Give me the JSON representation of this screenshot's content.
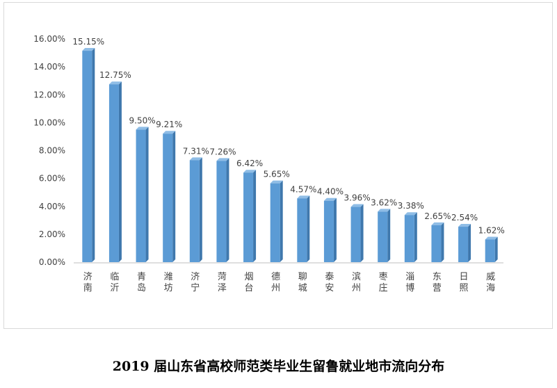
{
  "caption": "2019 届山东省高校师范类毕业生留鲁就业地市流向分布",
  "colors": {
    "bar_front": "#5b9bd5",
    "bar_side": "#3f78ad",
    "bar_top": "#8fbde6",
    "axis": "#bfbfbf"
  },
  "chart_data": {
    "type": "bar",
    "title": "2019 届山东省高校师范类毕业生留鲁就业地市流向分布",
    "xlabel": "",
    "ylabel": "",
    "ylim": [
      0,
      16
    ],
    "yticks": [
      "0.00%",
      "2.00%",
      "4.00%",
      "6.00%",
      "8.00%",
      "10.00%",
      "12.00%",
      "14.00%",
      "16.00%"
    ],
    "grid": false,
    "categories": [
      "济南",
      "临沂",
      "青岛",
      "潍坊",
      "济宁",
      "菏泽",
      "烟台",
      "德州",
      "聊城",
      "泰安",
      "滨州",
      "枣庄",
      "淄博",
      "东营",
      "日照",
      "威海"
    ],
    "values": [
      15.15,
      12.75,
      9.5,
      9.21,
      7.31,
      7.26,
      6.42,
      5.65,
      4.57,
      4.4,
      3.96,
      3.62,
      3.38,
      2.65,
      2.54,
      1.62
    ],
    "data_labels": [
      "15.15%",
      "12.75%",
      "9.50%",
      "9.21%",
      "7.31%",
      "7.26%",
      "6.42%",
      "5.65%",
      "4.57%",
      "4.40%",
      "3.96%",
      "3.62%",
      "3.38%",
      "2.65%",
      "2.54%",
      "1.62%"
    ]
  }
}
